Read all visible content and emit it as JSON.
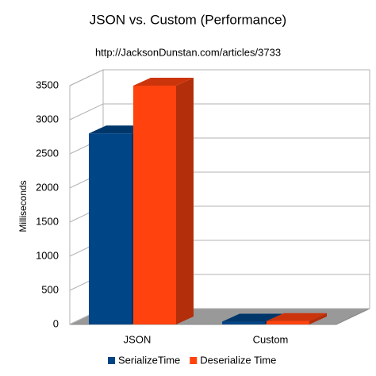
{
  "chart_data": {
    "type": "bar3d",
    "title": "JSON vs. Custom (Performance)",
    "subtitle": "http://JacksonDunstan.com/articles/3733",
    "y_label": "Milliseconds",
    "categories": [
      "JSON",
      "Custom"
    ],
    "series": [
      {
        "name": "SerializeTime",
        "color": "#004586",
        "values": [
          2800,
          40
        ]
      },
      {
        "name": "Deserialize Time",
        "color": "#ff420e",
        "values": [
          3500,
          50
        ]
      }
    ],
    "ylim": [
      0,
      3500
    ],
    "yticks": [
      0,
      500,
      1000,
      1500,
      2000,
      2500,
      3000,
      3500
    ],
    "grid": true,
    "legend": "bottom"
  }
}
